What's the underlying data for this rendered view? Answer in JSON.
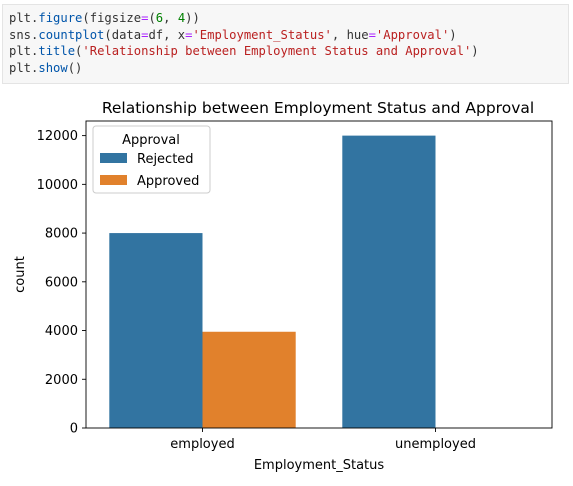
{
  "code_cell": {
    "lines": [
      [
        {
          "t": "plt.",
          "c": ""
        },
        {
          "t": "figure",
          "c": "tk-fn"
        },
        {
          "t": "(figsize",
          "c": ""
        },
        {
          "t": "=",
          "c": "tk-op"
        },
        {
          "t": "(",
          "c": ""
        },
        {
          "t": "6",
          "c": "tk-num"
        },
        {
          "t": ", ",
          "c": ""
        },
        {
          "t": "4",
          "c": "tk-num"
        },
        {
          "t": "))",
          "c": ""
        }
      ],
      [
        {
          "t": "sns.",
          "c": ""
        },
        {
          "t": "countplot",
          "c": "tk-fn"
        },
        {
          "t": "(data",
          "c": ""
        },
        {
          "t": "=",
          "c": "tk-op"
        },
        {
          "t": "df, x",
          "c": ""
        },
        {
          "t": "=",
          "c": "tk-op"
        },
        {
          "t": "'Employment_Status'",
          "c": "tk-str"
        },
        {
          "t": ", hue",
          "c": ""
        },
        {
          "t": "=",
          "c": "tk-op"
        },
        {
          "t": "'Approval'",
          "c": "tk-str"
        },
        {
          "t": ")",
          "c": ""
        }
      ],
      [
        {
          "t": "plt.",
          "c": ""
        },
        {
          "t": "title",
          "c": "tk-fn"
        },
        {
          "t": "(",
          "c": ""
        },
        {
          "t": "'Relationship between Employment Status and Approval'",
          "c": "tk-str"
        },
        {
          "t": ")",
          "c": ""
        }
      ],
      [
        {
          "t": "plt.",
          "c": ""
        },
        {
          "t": "show",
          "c": "tk-fn"
        },
        {
          "t": "()",
          "c": ""
        }
      ]
    ]
  },
  "colors": {
    "rejected": "#3274a1",
    "approved": "#e1812c"
  },
  "chart_data": {
    "type": "bar",
    "title": "Relationship between Employment Status and Approval",
    "xlabel": "Employment_Status",
    "ylabel": "count",
    "categories": [
      "employed",
      "unemployed"
    ],
    "series": [
      {
        "name": "Rejected",
        "values": [
          8000,
          12000
        ]
      },
      {
        "name": "Approved",
        "values": [
          3950,
          0
        ]
      }
    ],
    "ylim": [
      0,
      12600
    ],
    "yticks": [
      0,
      2000,
      4000,
      6000,
      8000,
      10000,
      12000
    ],
    "legend": {
      "title": "Approval",
      "position": "upper-left"
    },
    "grid": false
  }
}
